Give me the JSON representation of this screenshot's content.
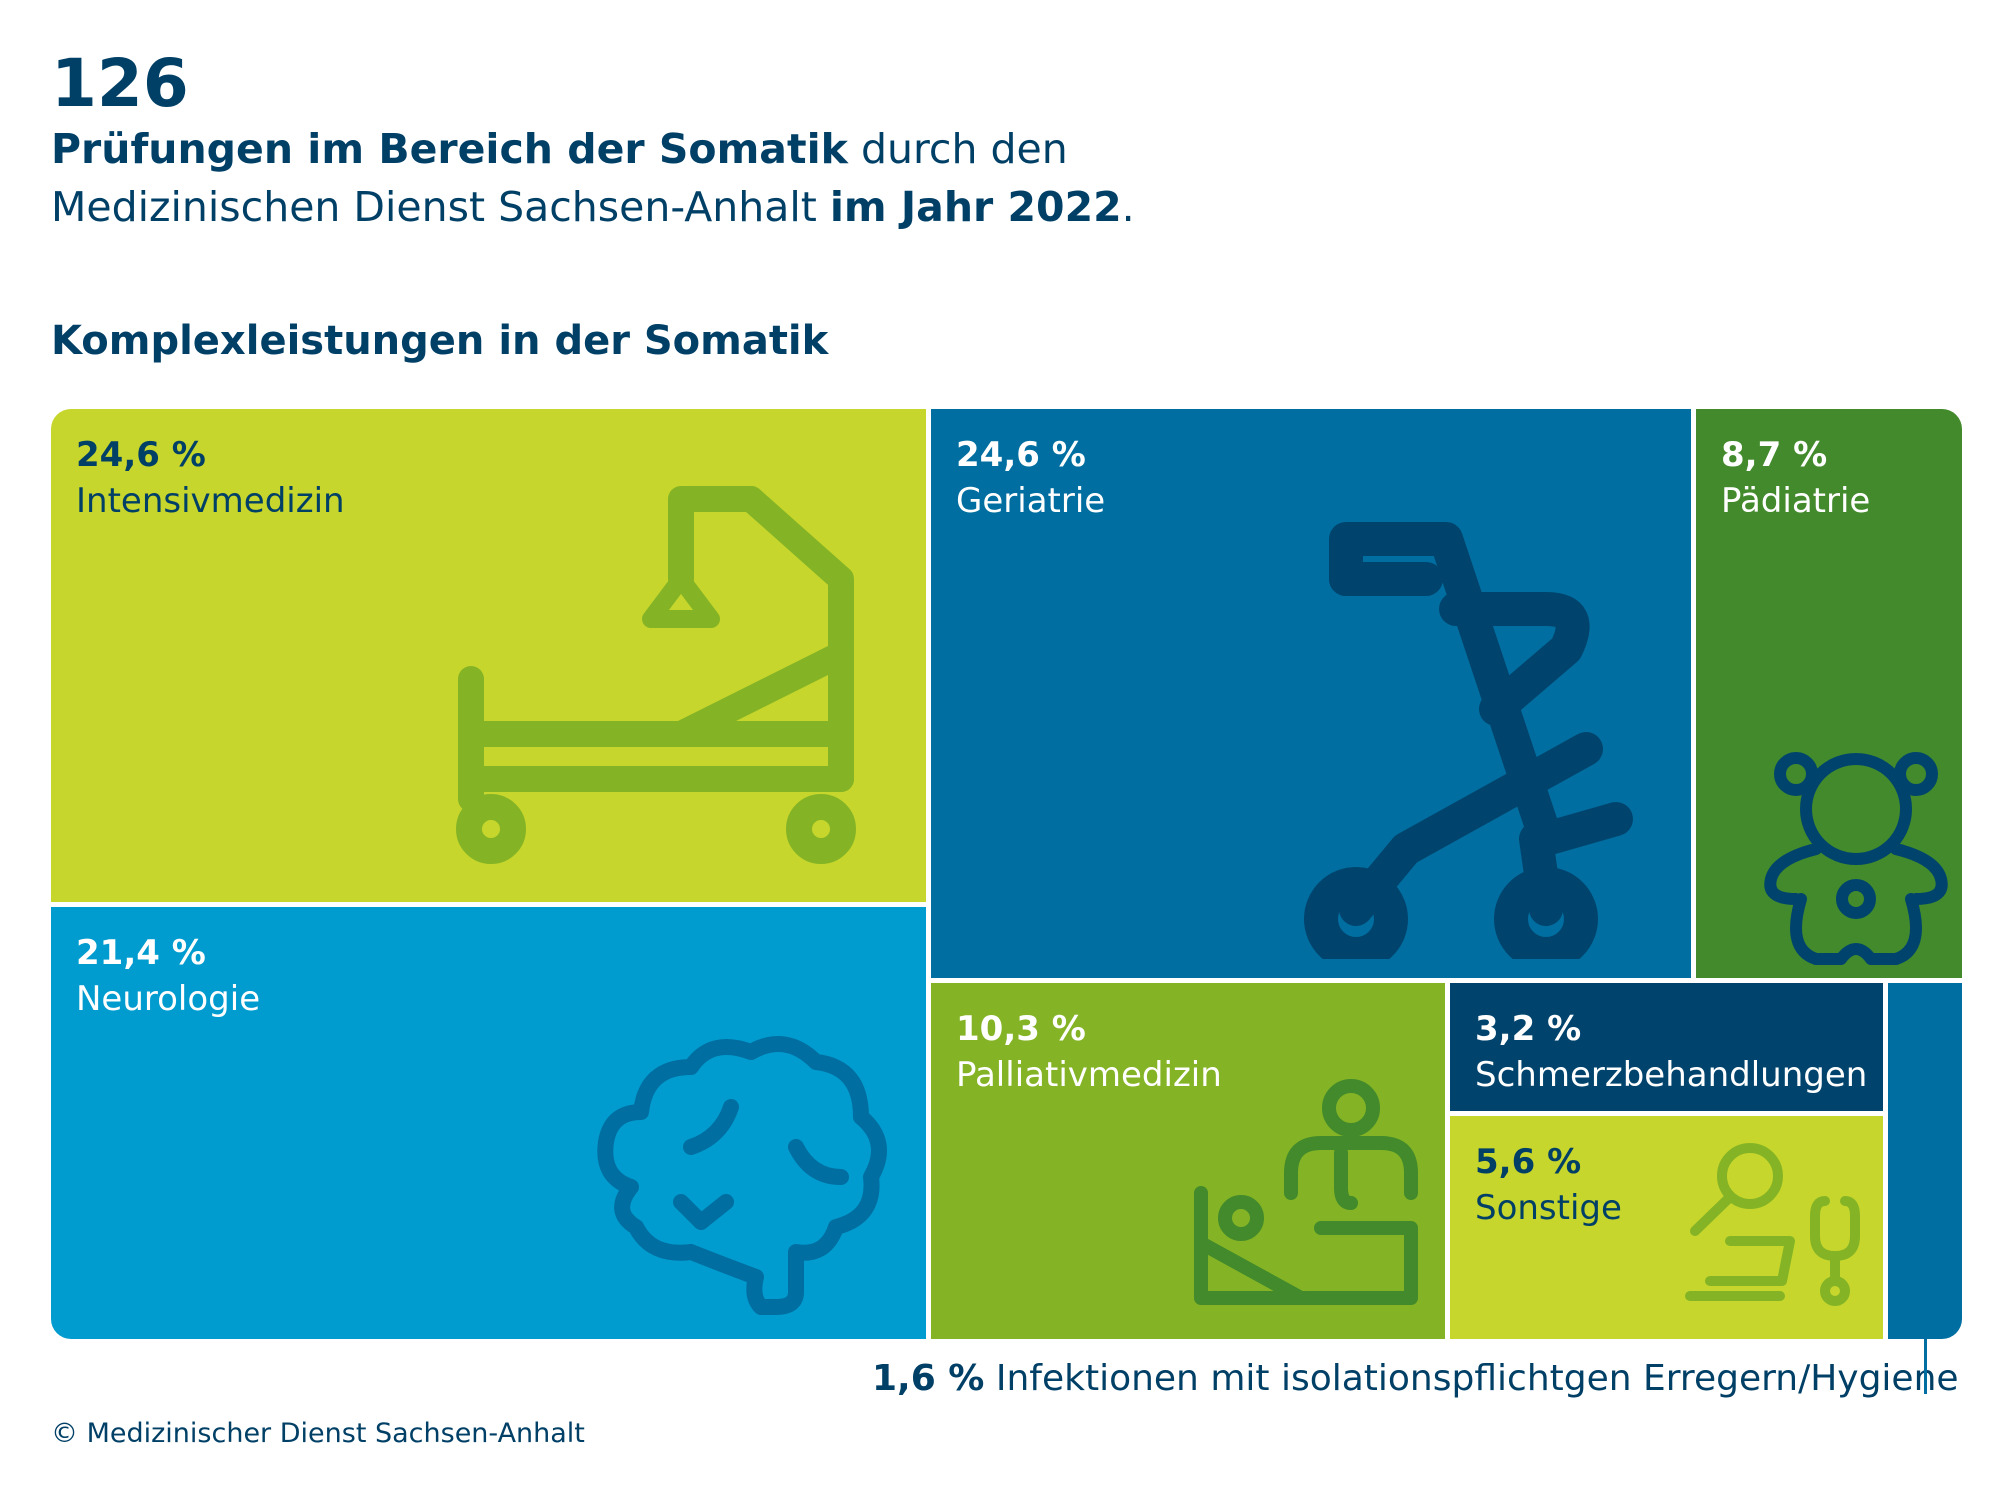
{
  "header": {
    "big_number": "126",
    "line1_bold": "Prüfungen im Bereich der Somatik",
    "line1_rest": " durch den",
    "line2_normal": "Medizinischen Dienst Sachsen-Anhalt ",
    "line2_bold": "im Jahr 2022",
    "line2_end": "."
  },
  "section_title": "Komplexleistungen in der Somatik",
  "colors": {
    "lime": "#c6d62c",
    "green": "#84b425",
    "dark_green": "#428a2b",
    "light_blue": "#009ccf",
    "blue": "#006ea0",
    "navy": "#00446d",
    "text_dark": "#003f66",
    "text_white": "#ffffff"
  },
  "chart_data": {
    "type": "treemap",
    "unit": "%",
    "items": [
      {
        "label": "Intensivmedizin",
        "value": 24.6,
        "value_text": "24,6 %",
        "color": "#c6d62c",
        "icon": "hospital-bed-icon"
      },
      {
        "label": "Geriatrie",
        "value": 24.6,
        "value_text": "24,6 %",
        "color": "#006ea0",
        "icon": "walker-rollator-icon"
      },
      {
        "label": "Pädiatrie",
        "value": 8.7,
        "value_text": "8,7 %",
        "color": "#428a2b",
        "icon": "teddy-bear-icon"
      },
      {
        "label": "Neurologie",
        "value": 21.4,
        "value_text": "21,4 %",
        "color": "#009ccf",
        "icon": "brain-icon"
      },
      {
        "label": "Palliativmedizin",
        "value": 10.3,
        "value_text": "10,3 %",
        "color": "#84b425",
        "icon": "patient-care-icon"
      },
      {
        "label": "Schmerzbehandlungen",
        "value": 3.2,
        "value_text": "3,2 %",
        "color": "#00446d",
        "icon": ""
      },
      {
        "label": "Sonstige",
        "value": 5.6,
        "value_text": "5,6 %",
        "color": "#c6d62c",
        "icon": "magnifier-laptop-stethoscope-icon"
      },
      {
        "label": "Infektionen mit isolationspflichtgen Erregern/Hygiene",
        "value": 1.6,
        "value_text": "1,6 %",
        "color": "#006ea0",
        "icon": ""
      }
    ]
  },
  "copyright": "© Medizinischer Dienst Sachsen-Anhalt"
}
